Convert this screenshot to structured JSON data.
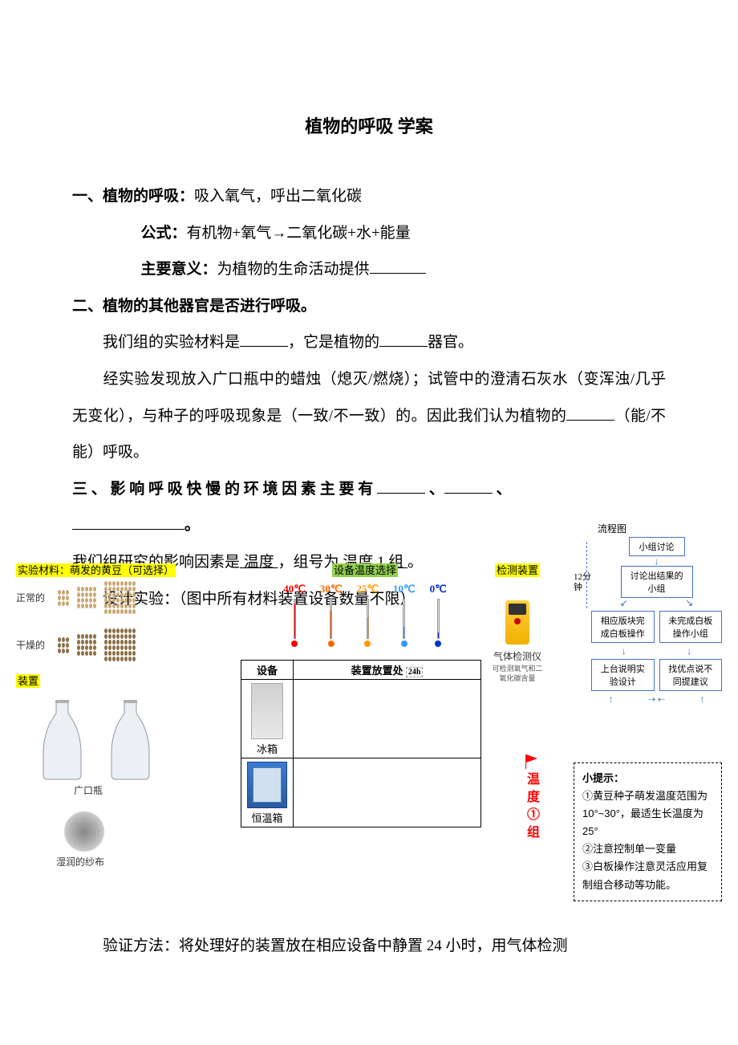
{
  "title": "植物的呼吸   学案",
  "section1": {
    "heading": "一、植物的呼吸：",
    "heading_rest": "吸入氧气，呼出二氧化碳",
    "formula_label": "公式：",
    "formula_text": "有机物+氧气→二氧化碳+水+能量",
    "meaning_label": "主要意义：",
    "meaning_text": "为植物的生命活动提供"
  },
  "section2": {
    "heading": "二、植物的其他器官是否进行呼吸。",
    "line1_a": "我们组的实验材料是",
    "line1_b": "，它是植物的",
    "line1_c": "器官。",
    "line2": "经实验发现放入广口瓶中的蜡烛（熄灭/燃烧）；试管中的澄清石灰水（变浑浊/几乎无变化），与种子的呼吸现象是（一致/不一致）的。因此我们认为植物的",
    "line2_end": "（能/不能）呼吸。"
  },
  "section3": {
    "heading": "三 、 影 响 呼 吸 快 慢 的 环 境 因 素 主 要 有 ",
    "line1_a": "我们组研究的影响因素是",
    "line1_factor": " 温度 ",
    "line1_b": "，组号为",
    "line1_group": " 温度 1 组 ",
    "line1_c": "。",
    "line2": "设计实验：（图中所有材料装置设备数量不限）"
  },
  "materials": {
    "header": "实验材料：萌发的黄豆（可选择）",
    "normal": "正常的",
    "dry": "干燥的",
    "apparatus_label": "装置",
    "bottle_label": "广口瓶",
    "gauze_label": "湿润的纱布"
  },
  "temps": {
    "header": "设备温度选择",
    "items": [
      {
        "label": "40℃",
        "color": "#ff0000",
        "fill": 0.9
      },
      {
        "label": "30℃",
        "color": "#ff6600",
        "fill": 0.7
      },
      {
        "label": "25℃",
        "color": "#ff9900",
        "fill": 0.55
      },
      {
        "label": "10℃",
        "color": "#3399ff",
        "fill": 0.3
      },
      {
        "label": "0℃",
        "color": "#0033cc",
        "fill": 0.15
      }
    ]
  },
  "equipment": {
    "col1": "设备",
    "col2": "装置放置处",
    "duration": "24h",
    "fridge": "冰箱",
    "incubator": "恒温箱"
  },
  "detector": {
    "header": "检测装置",
    "name": "气体检测仪",
    "desc": "可检测氧气和二氧化碳含量"
  },
  "flag_label": "温度①组",
  "flowchart": {
    "title": "流程图",
    "time": "12分钟",
    "box1": "小组讨论",
    "box2": "讨论出结果的小组",
    "box3": "相应版块完成白板操作",
    "box4": "未完成白板操作小组",
    "box5": "上台说明实验设计",
    "box6": "找优点说不同提建议"
  },
  "tips": {
    "title": "小提示：",
    "tip1": "①黄豆种子萌发温度范围为 10°~30°，最适生长温度为 25°",
    "tip2": "②注意控制单一变量",
    "tip3": "③白板操作注意灵活应用复制组合移动等功能。"
  },
  "footer": "验证方法：将处理好的装置放在相应设备中静置 24 小时，用气体检测",
  "colors": {
    "yellow_hl": "#ffff00",
    "green_hl": "#92d050",
    "flow_border": "#4472c4",
    "red": "#ff0000"
  }
}
